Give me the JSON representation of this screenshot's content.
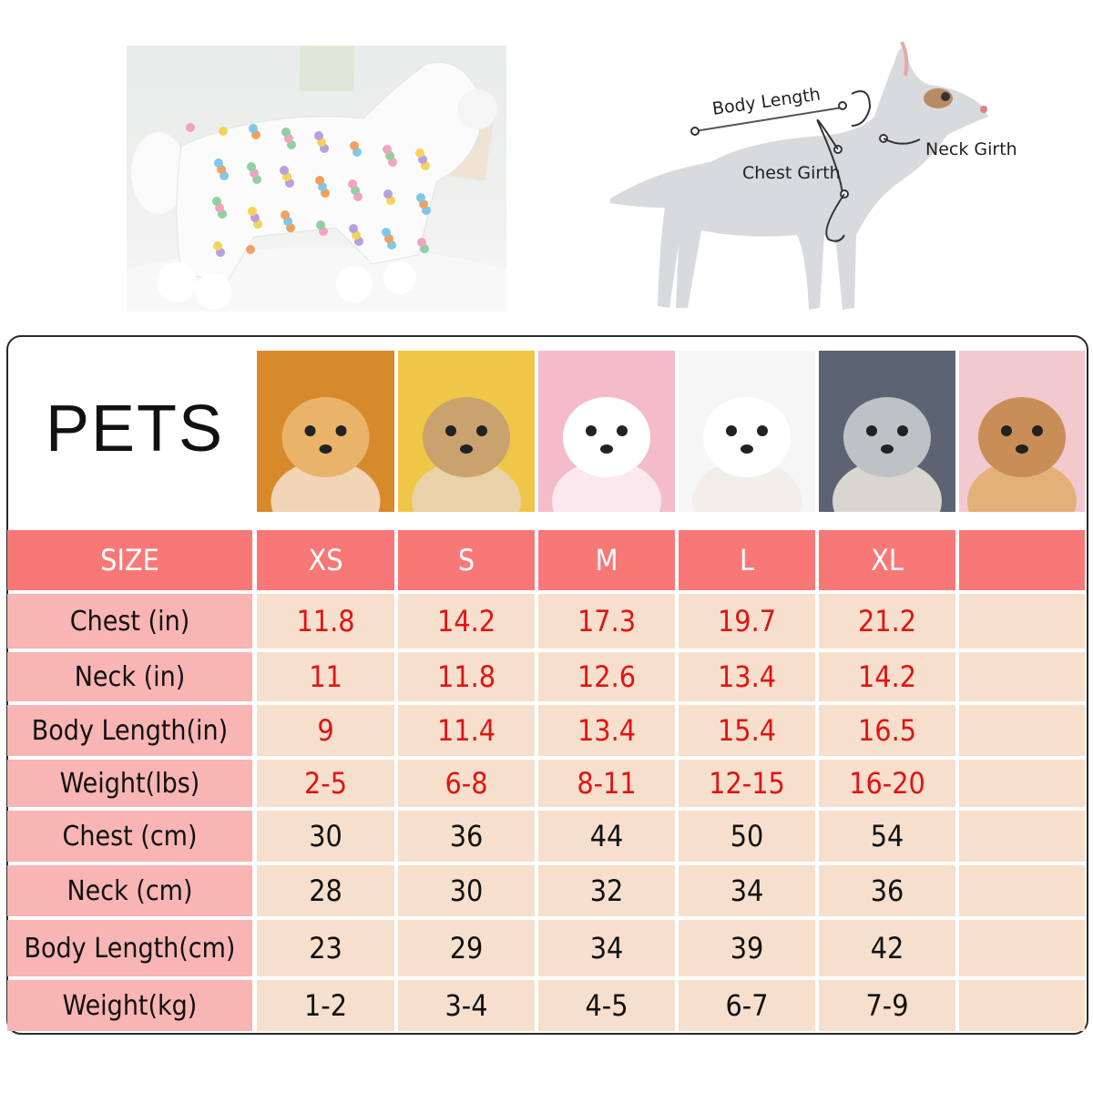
{
  "diagram": {
    "labels": {
      "body_length": "Body Length",
      "chest_girth": "Chest Girth",
      "neck_girth": "Neck Girth"
    }
  },
  "table": {
    "title": "PETS",
    "header": {
      "label": "SIZE",
      "sizes": [
        "XS",
        "S",
        "M",
        "L",
        "XL"
      ]
    },
    "rows": [
      {
        "label": "Chest (in)",
        "values": [
          "11.8",
          "14.2",
          "17.3",
          "19.7",
          "21.2"
        ],
        "color": "#e01414"
      },
      {
        "label": "Neck (in)",
        "values": [
          "11",
          "11.8",
          "12.6",
          "13.4",
          "14.2"
        ],
        "color": "#e01414"
      },
      {
        "label": "Body Length(in)",
        "values": [
          "9",
          "11.4",
          "13.4",
          "15.4",
          "16.5"
        ],
        "color": "#e01414"
      },
      {
        "label": "Weight(lbs)",
        "values": [
          "2-5",
          "6-8",
          "8-11",
          "12-15",
          "16-20"
        ],
        "color": "#e01414"
      },
      {
        "label": "Chest (cm)",
        "values": [
          "30",
          "36",
          "44",
          "50",
          "54"
        ],
        "color": "#111111"
      },
      {
        "label": "Neck (cm)",
        "values": [
          "28",
          "30",
          "32",
          "34",
          "36"
        ],
        "color": "#111111"
      },
      {
        "label": "Body Length(cm)",
        "values": [
          "23",
          "29",
          "34",
          "39",
          "42"
        ],
        "color": "#111111"
      },
      {
        "label": "Weight(kg)",
        "values": [
          "1-2",
          "3-4",
          "4-5",
          "6-7",
          "7-9"
        ],
        "color": "#111111"
      }
    ]
  },
  "colors": {
    "header": "#f87878",
    "label_column": "#f9b4b4",
    "cells": "#f6dfcc",
    "inch_values": "#e01414"
  }
}
